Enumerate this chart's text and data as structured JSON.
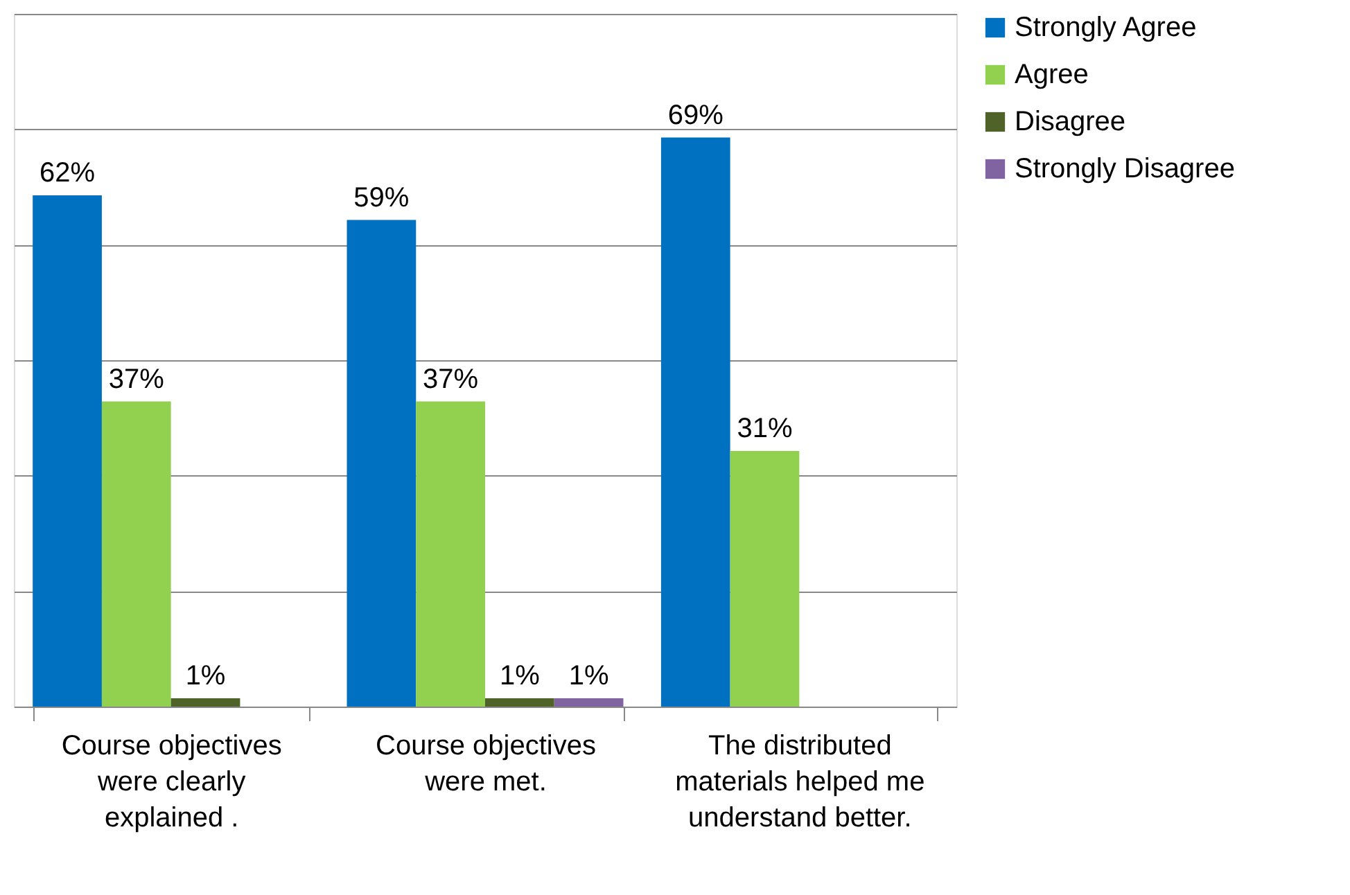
{
  "chart_data": {
    "type": "bar",
    "categories": [
      "Course objectives were clearly explained .",
      "Course objectives were met.",
      "The distributed materials helped me understand better."
    ],
    "series": [
      {
        "name": "Strongly Agree",
        "color": "#0070c0",
        "values": [
          62,
          59,
          69
        ],
        "value_labels": [
          "62%",
          "59%",
          "69%"
        ]
      },
      {
        "name": "Agree",
        "color": "#92d050",
        "values": [
          37,
          37,
          31
        ],
        "value_labels": [
          "37%",
          "37%",
          "31%"
        ]
      },
      {
        "name": "Disagree",
        "color": "#4f6228",
        "values": [
          1,
          1,
          null
        ],
        "value_labels": [
          "1%",
          "1%",
          null
        ]
      },
      {
        "name": "Strongly Disagree",
        "color": "#8064a2",
        "values": [
          null,
          1,
          null
        ],
        "value_labels": [
          null,
          "1%",
          null
        ]
      }
    ],
    "ylim": [
      0,
      84
    ],
    "yticks": [
      {
        "value": 0,
        "label": null
      },
      {
        "value": 14,
        "label": null
      },
      {
        "value": 28,
        "label": null
      },
      {
        "value": 42,
        "label": null
      },
      {
        "value": 56,
        "label": null
      },
      {
        "value": 70,
        "label": null
      },
      {
        "value": 84,
        "label": null
      }
    ],
    "grid": "y",
    "legend": "right",
    "tick_labels": "x"
  }
}
